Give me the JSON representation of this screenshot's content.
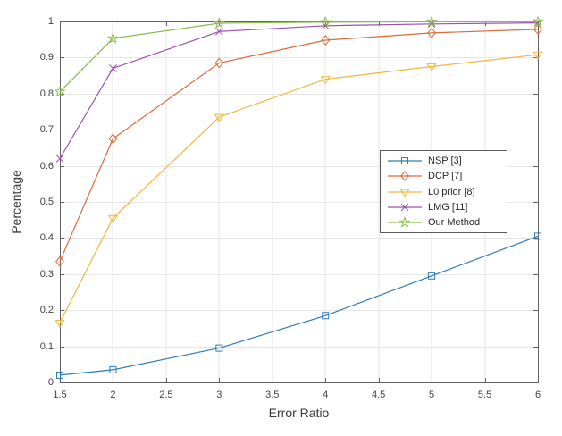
{
  "figure": {
    "bg": "#ffffff",
    "axis_color": "#616161",
    "grid_color": "#e5e5e5",
    "tick_label_color": "#3f3f3f",
    "axis_label_color": "#3a3a3a",
    "legend_border_color": "#5a5a5a",
    "legend_bg": "#ffffff",
    "legend_text_color": "#262626"
  },
  "chart_data": {
    "type": "line",
    "title": "",
    "xlabel": "Error Ratio",
    "ylabel": "Percentage",
    "xlim": [
      1.5,
      6
    ],
    "ylim": [
      0,
      1
    ],
    "xticks": [
      "1.5",
      "2",
      "2.5",
      "3",
      "3.5",
      "4",
      "4.5",
      "5",
      "5.5",
      "6"
    ],
    "yticks": [
      "0",
      "0.1",
      "0.2",
      "0.3",
      "0.4",
      "0.5",
      "0.6",
      "0.7",
      "0.8",
      "0.9",
      "1"
    ],
    "grid": true,
    "legend_position": "middle-right",
    "x": [
      1.5,
      2,
      3,
      4,
      5,
      6
    ],
    "series": [
      {
        "name": "NSP [3]",
        "marker": "square",
        "color": "#2e7cb8",
        "values": [
          0.02,
          0.035,
          0.095,
          0.185,
          0.295,
          0.405
        ]
      },
      {
        "name": "DCP [7]",
        "marker": "diamond",
        "color": "#dc6a3a",
        "values": [
          0.335,
          0.675,
          0.885,
          0.948,
          0.968,
          0.978
        ]
      },
      {
        "name": "L0 prior [8]",
        "marker": "triangle-down",
        "color": "#efb73c",
        "values": [
          0.165,
          0.455,
          0.735,
          0.84,
          0.875,
          0.908
        ]
      },
      {
        "name": "LMG [11]",
        "marker": "x",
        "color": "#9c4fad",
        "values": [
          0.62,
          0.87,
          0.972,
          0.988,
          0.993,
          0.996
        ]
      },
      {
        "name": "Our Method",
        "marker": "star",
        "color": "#89bb4a",
        "values": [
          0.805,
          0.953,
          0.995,
          0.998,
          0.999,
          0.999
        ]
      }
    ]
  }
}
